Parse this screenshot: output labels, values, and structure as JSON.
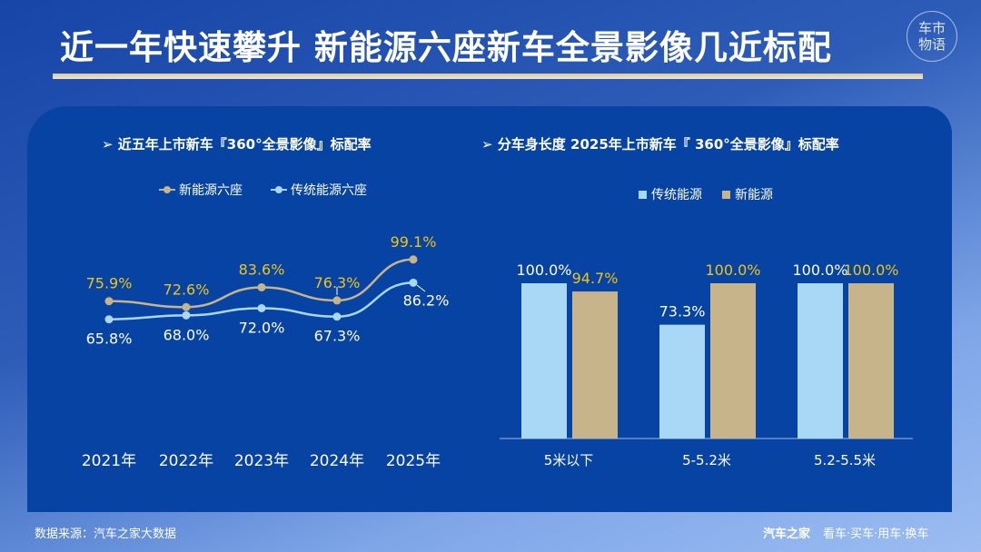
{
  "title": "近一年快速攀升 新能源六座新车全景影像几近标配",
  "logo_text": "车市物语",
  "source": "数据来源：汽车之家大数据",
  "brand": "汽车之家",
  "brand_slogan": "看车·买车·用车·换车",
  "colors": {
    "new_energy": "#c8b48a",
    "traditional": "#a9d8f7",
    "label_gold": "#f0c419",
    "panel": "#0743a2"
  },
  "chart_data": [
    {
      "type": "line",
      "title": "➢  近五年上市新车『360°全景影像』标配率",
      "categories": [
        "2021年",
        "2022年",
        "2023年",
        "2024年",
        "2025年"
      ],
      "series": [
        {
          "name": "新能源六座",
          "values": [
            75.9,
            72.6,
            83.6,
            76.3,
            99.1
          ],
          "labels": [
            "75.9%",
            "72.6%",
            "83.6%",
            "76.3%",
            "99.1%"
          ]
        },
        {
          "name": "传统能源六座",
          "values": [
            65.8,
            68.0,
            72.0,
            67.3,
            86.2
          ],
          "labels": [
            "65.8%",
            "68.0%",
            "72.0%",
            "67.3%",
            "86.2%"
          ]
        }
      ],
      "legend": "top"
    },
    {
      "type": "bar",
      "title": "➢  分车身长度 2025年上市新车『 360°全景影像』标配率",
      "categories": [
        "5米以下",
        "5-5.2米",
        "5.2-5.5米"
      ],
      "series": [
        {
          "name": "传统能源",
          "values": [
            100.0,
            73.3,
            100.0
          ],
          "labels": [
            "100.0%",
            "73.3%",
            "100.0%"
          ]
        },
        {
          "name": "新能源",
          "values": [
            94.7,
            100.0,
            100.0
          ],
          "labels": [
            "94.7%",
            "100.0%",
            "100.0%"
          ]
        }
      ],
      "ylim": [
        0,
        100
      ],
      "legend": "top"
    }
  ]
}
